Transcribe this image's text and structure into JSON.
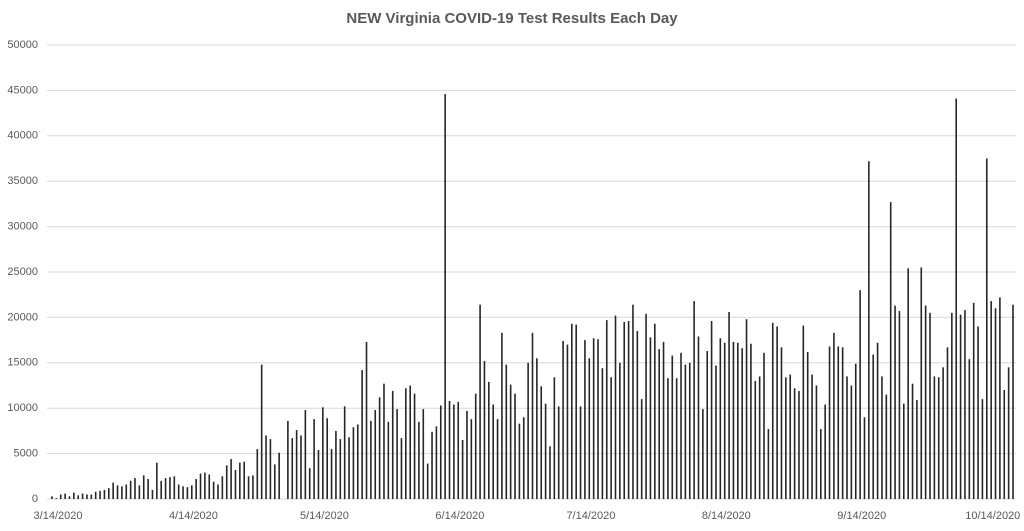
{
  "chart_data": {
    "type": "bar",
    "title": "NEW Virginia COVID-19 Test Results Each Day",
    "categories": [
      "3/14/2020",
      null,
      null,
      null,
      null,
      null,
      null,
      null,
      null,
      null,
      null,
      null,
      null,
      null,
      null,
      null,
      null,
      null,
      null,
      null,
      null,
      null,
      null,
      null,
      null,
      null,
      null,
      null,
      null,
      null,
      null,
      "4/14/2020",
      null,
      null,
      null,
      null,
      null,
      null,
      null,
      null,
      null,
      null,
      null,
      null,
      null,
      null,
      null,
      null,
      null,
      null,
      null,
      null,
      null,
      null,
      null,
      null,
      null,
      null,
      null,
      null,
      null,
      "5/14/2020",
      null,
      null,
      null,
      null,
      null,
      null,
      null,
      null,
      null,
      null,
      null,
      null,
      null,
      null,
      null,
      null,
      null,
      null,
      null,
      null,
      null,
      null,
      null,
      null,
      null,
      null,
      null,
      null,
      null,
      null,
      "6/14/2020",
      null,
      null,
      null,
      null,
      null,
      null,
      null,
      null,
      null,
      null,
      null,
      null,
      null,
      null,
      null,
      null,
      null,
      null,
      null,
      null,
      null,
      null,
      null,
      null,
      null,
      null,
      null,
      null,
      null,
      "7/14/2020",
      null,
      null,
      null,
      null,
      null,
      null,
      null,
      null,
      null,
      null,
      null,
      null,
      null,
      null,
      null,
      null,
      null,
      null,
      null,
      null,
      null,
      null,
      null,
      null,
      null,
      null,
      null,
      null,
      null,
      null,
      "8/14/2020",
      null,
      null,
      null,
      null,
      null,
      null,
      null,
      null,
      null,
      null,
      null,
      null,
      null,
      null,
      null,
      null,
      null,
      null,
      null,
      null,
      null,
      null,
      null,
      null,
      null,
      null,
      null,
      null,
      null,
      null,
      "9/14/2020",
      null,
      null,
      null,
      null,
      null,
      null,
      null,
      null,
      null,
      null,
      null,
      null,
      null,
      null,
      null,
      null,
      null,
      null,
      null,
      null,
      null,
      null,
      null,
      null,
      null,
      null,
      null,
      null,
      null,
      "10/14/2020",
      null,
      null,
      null,
      null,
      null,
      null
    ],
    "values": [
      300,
      100,
      500,
      600,
      300,
      700,
      400,
      600,
      500,
      500,
      800,
      900,
      1000,
      1200,
      1800,
      1500,
      1400,
      1600,
      2000,
      2300,
      1500,
      2600,
      2200,
      1000,
      4000,
      2000,
      2300,
      2400,
      2500,
      1600,
      1400,
      1300,
      1500,
      2200,
      2800,
      2900,
      2700,
      1900,
      1600,
      2500,
      3700,
      4400,
      3200,
      4000,
      4100,
      2500,
      2600,
      5500,
      14800,
      7000,
      6600,
      3800,
      5100,
      0,
      8600,
      6700,
      7600,
      7000,
      9800,
      3400,
      8800,
      5400,
      10100,
      8900,
      5500,
      7500,
      6600,
      10200,
      6800,
      7900,
      8200,
      14200,
      17300,
      8600,
      9800,
      11200,
      12700,
      8500,
      11900,
      9900,
      6700,
      12200,
      12500,
      11600,
      8500,
      9900,
      3900,
      7400,
      8000,
      10300,
      44600,
      10800,
      10400,
      10700,
      6500,
      9700,
      8800,
      11600,
      21400,
      15200,
      12900,
      10400,
      8800,
      18300,
      14800,
      12600,
      11600,
      8300,
      9000,
      15000,
      18300,
      15500,
      12400,
      10500,
      5800,
      13400,
      10200,
      17400,
      17000,
      19300,
      19200,
      10200,
      17500,
      15500,
      17700,
      17600,
      14400,
      19700,
      13400,
      20200,
      15000,
      19500,
      19600,
      21400,
      18500,
      11000,
      20400,
      17800,
      19300,
      16500,
      17300,
      13300,
      15800,
      13300,
      16100,
      14800,
      15000,
      21800,
      17900,
      9900,
      16300,
      19600,
      14700,
      17700,
      17200,
      20600,
      17300,
      17200,
      16600,
      19800,
      17100,
      13000,
      13500,
      16100,
      7700,
      19400,
      19000,
      16700,
      13400,
      13700,
      12200,
      11900,
      19100,
      16200,
      13700,
      12500,
      7700,
      10400,
      16800,
      18300,
      16800,
      16700,
      13500,
      12500,
      14900,
      23000,
      9000,
      37200,
      15900,
      17200,
      13500,
      11500,
      32700,
      21300,
      20700,
      10500,
      25400,
      12700,
      10900,
      25500,
      21300,
      20500,
      13500,
      13400,
      14500,
      16700,
      20500,
      44100,
      20300,
      20800,
      15400,
      21600,
      19000,
      11000,
      37500,
      21800,
      21000,
      22200,
      12000,
      14500,
      21400
    ],
    "color": "#262626",
    "ylim": [
      0,
      50000
    ],
    "yticks": [
      0,
      5000,
      10000,
      15000,
      20000,
      25000,
      30000,
      35000,
      40000,
      45000,
      50000
    ],
    "grid": true
  }
}
